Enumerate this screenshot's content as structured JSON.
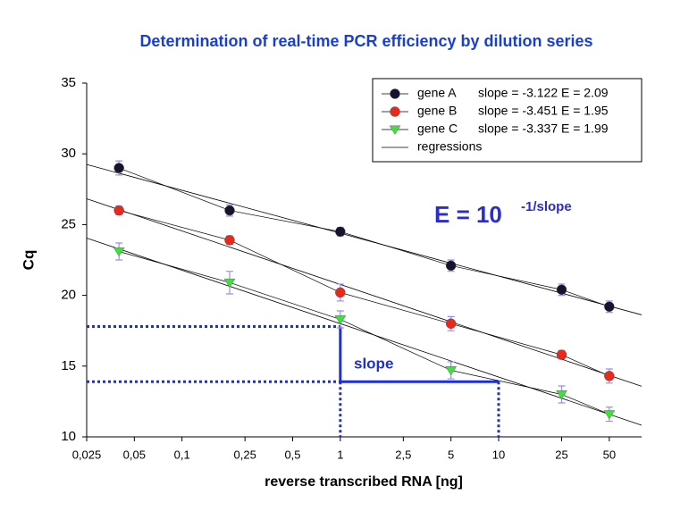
{
  "chart_data": {
    "type": "scatter",
    "title": "Determination of real-time PCR efficiency by dilution series",
    "x_label": "reverse transcribed RNA [ng]",
    "y_label": "Cq",
    "x": [
      0.04,
      0.2,
      1,
      5,
      25,
      50
    ],
    "xlim": [
      0.025,
      80
    ],
    "ylim": [
      10,
      35
    ],
    "xscale": "log",
    "xticks": [
      {
        "value": 0.025,
        "label": "0,025"
      },
      {
        "value": 0.05,
        "label": "0,05"
      },
      {
        "value": 0.1,
        "label": "0,1"
      },
      {
        "value": 0.25,
        "label": "0,25"
      },
      {
        "value": 0.5,
        "label": "0,5"
      },
      1,
      {
        "value": 2.5,
        "label": "2,5"
      },
      5,
      10,
      25,
      50
    ],
    "yticks": [
      10,
      15,
      20,
      25,
      30,
      35
    ],
    "grid": false,
    "series": [
      {
        "name": "gene A",
        "label": "slope = -3.122   E = 2.09",
        "color": "#14142e",
        "marker": "circle",
        "values": [
          29.0,
          26.0,
          24.5,
          22.1,
          20.4,
          19.2
        ],
        "errors": [
          0.5,
          0.4,
          0.3,
          0.4,
          0.4,
          0.4
        ]
      },
      {
        "name": "gene B",
        "label": "slope = -3.451   E = 1.95",
        "color": "#e8291c",
        "marker": "circle",
        "values": [
          26.0,
          23.9,
          20.2,
          18.0,
          15.8,
          14.3
        ],
        "errors": [
          0.3,
          0.3,
          0.6,
          0.5,
          0.3,
          0.5
        ]
      },
      {
        "name": "gene C",
        "label": "slope = -3.337   E = 1.99",
        "color": "#3fe03a",
        "marker": "triangle",
        "values": [
          23.1,
          20.9,
          18.3,
          14.7,
          13.0,
          11.6
        ],
        "errors": [
          0.6,
          0.8,
          0.6,
          0.6,
          0.6,
          0.5
        ]
      }
    ],
    "regression_label": "regressions",
    "legend_position": "upper right",
    "formula": {
      "text": "E = 10",
      "exponent": "-1/slope"
    },
    "slope_guide": {
      "label": "slope",
      "x": [
        1,
        10
      ],
      "y": [
        17.8,
        13.9
      ],
      "color": "#1a2fd8"
    }
  }
}
